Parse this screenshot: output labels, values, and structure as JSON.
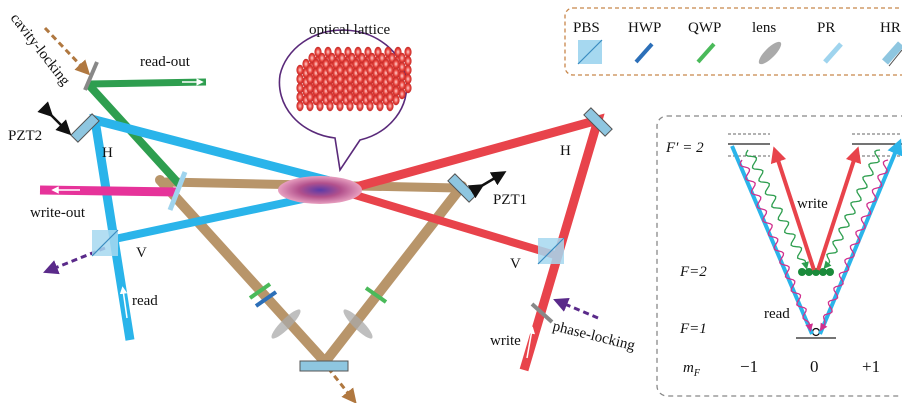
{
  "labels": {
    "optical_lattice": "optical lattice",
    "cavity_locking": "cavity-locking",
    "read_out": "read-out",
    "pzt2": "PZT2",
    "pzt1": "PZT1",
    "h_left": "H",
    "h_right": "H",
    "v_left": "V",
    "v_right": "V",
    "write_out": "write-out",
    "read": "read",
    "write": "write",
    "phase_locking": "phase-locking"
  },
  "legend": {
    "items": [
      {
        "name": "PBS"
      },
      {
        "name": "HWP"
      },
      {
        "name": "QWP"
      },
      {
        "name": "lens"
      },
      {
        "name": "PR"
      },
      {
        "name": "HR"
      }
    ]
  },
  "level_diagram": {
    "f_prime": "F′ = 2",
    "f2": "F=2",
    "f1": "F=1",
    "mf": "m",
    "mf_sub": "F",
    "mf_values": [
      "−1",
      "0",
      "+1"
    ],
    "write": "write",
    "read": "read"
  },
  "colors": {
    "read_beam": "#2ab4ea",
    "write_beam": "#e8434b",
    "locking_beam": "#b8956a",
    "readout_beam": "#2e9e4f",
    "writeout_beam": "#e6339a",
    "dashed_legend_border": "#c8864a",
    "level_box_border": "#888888",
    "purple": "#6a2a8c",
    "lattice_red": "#e04040"
  },
  "icons": [
    "pbs-icon",
    "hwp-icon",
    "qwp-icon",
    "lens-icon",
    "pr-icon",
    "hr-icon",
    "arrow-icon"
  ]
}
